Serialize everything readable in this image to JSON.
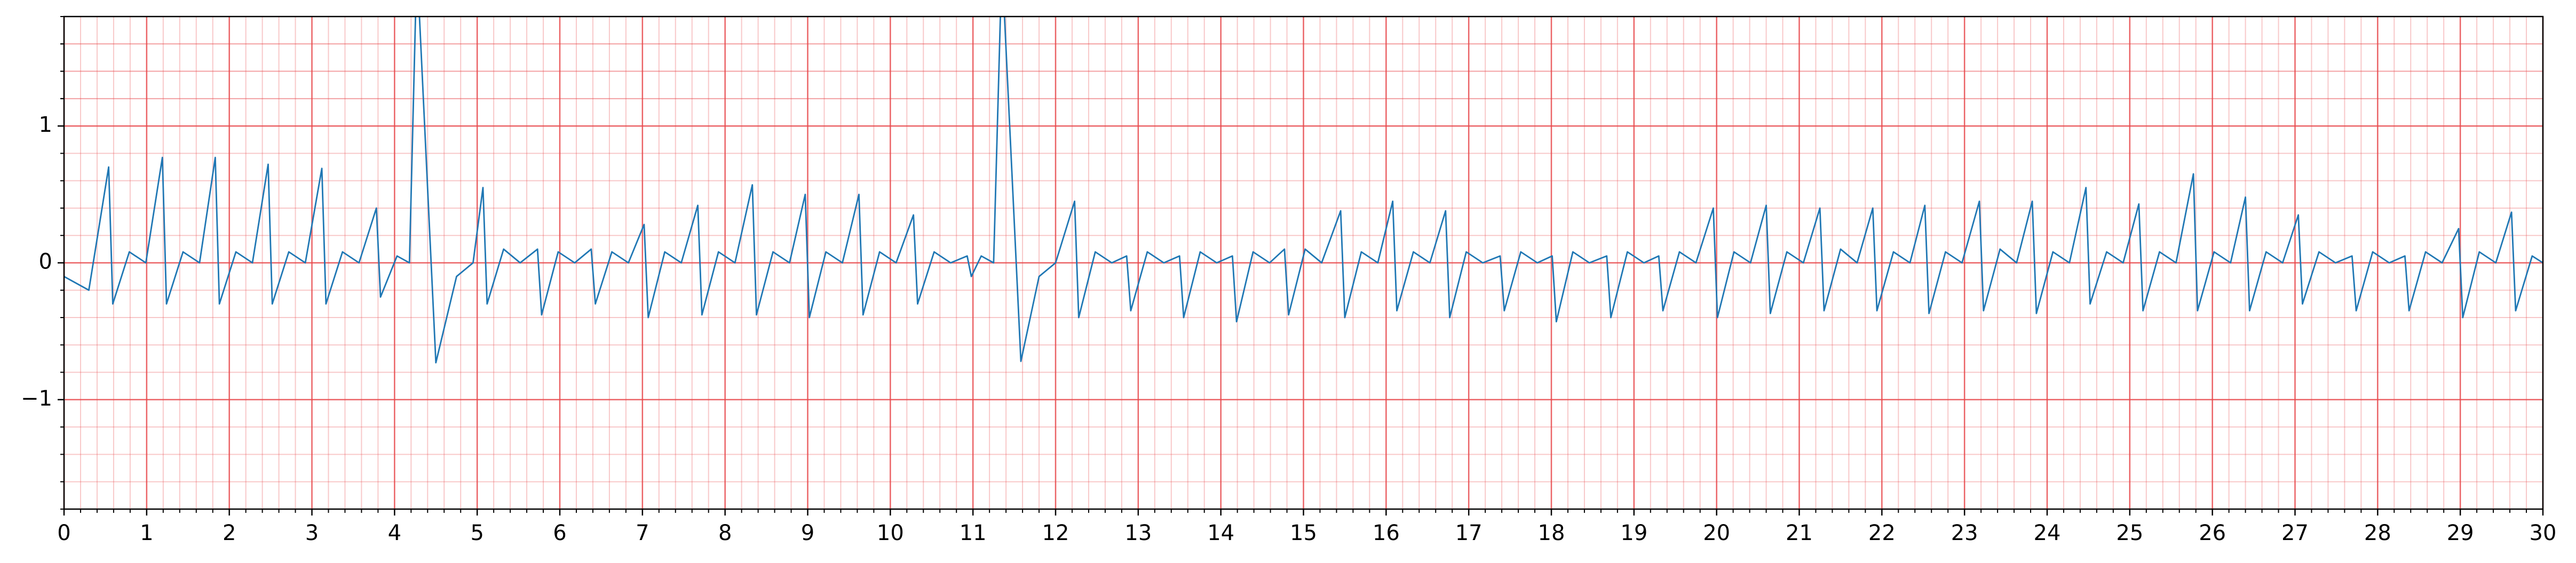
{
  "chart_data": {
    "type": "line",
    "color": "#1f77b4",
    "grid": true,
    "minor_grid": true,
    "grid_color": "#e8484b",
    "xlim": [
      0,
      30
    ],
    "ylim": [
      -1.8,
      1.8
    ],
    "xticks": [
      0,
      1,
      2,
      3,
      4,
      5,
      6,
      7,
      8,
      9,
      10,
      11,
      12,
      13,
      14,
      15,
      16,
      17,
      18,
      19,
      20,
      21,
      22,
      23,
      24,
      25,
      26,
      27,
      28,
      29,
      30
    ],
    "yticks": [
      {
        "value": -1,
        "label": "−1"
      },
      0,
      1
    ],
    "x": [
      0,
      0.3,
      0.54,
      0.59,
      0.79,
      0.99,
      1.19,
      1.24,
      1.44,
      1.64,
      1.83,
      1.88,
      2.08,
      2.28,
      2.47,
      2.52,
      2.72,
      2.92,
      3.12,
      3.17,
      3.37,
      3.57,
      3.78,
      3.83,
      4.03,
      4.18,
      4.27,
      4.5,
      4.75,
      4.95,
      5.07,
      5.12,
      5.32,
      5.52,
      5.73,
      5.78,
      5.98,
      6.18,
      6.38,
      6.43,
      6.63,
      6.83,
      7.02,
      7.07,
      7.27,
      7.47,
      7.67,
      7.72,
      7.92,
      8.12,
      8.33,
      8.38,
      8.58,
      8.78,
      8.97,
      9.02,
      9.22,
      9.42,
      9.62,
      9.67,
      9.87,
      10.07,
      10.28,
      10.33,
      10.53,
      10.73,
      10.93,
      10.98,
      11.1,
      11.25,
      11.35,
      11.58,
      11.8,
      12.0,
      12.23,
      12.28,
      12.48,
      12.68,
      12.86,
      12.91,
      13.11,
      13.31,
      13.5,
      13.55,
      13.75,
      13.95,
      14.14,
      14.19,
      14.39,
      14.59,
      14.77,
      14.82,
      15.02,
      15.22,
      15.45,
      15.5,
      15.7,
      15.9,
      16.08,
      16.13,
      16.33,
      16.53,
      16.72,
      16.77,
      16.97,
      17.17,
      17.38,
      17.43,
      17.63,
      17.83,
      18.01,
      18.06,
      18.26,
      18.46,
      18.67,
      18.72,
      18.92,
      19.12,
      19.3,
      19.35,
      19.55,
      19.75,
      19.96,
      20.01,
      20.21,
      20.41,
      20.6,
      20.65,
      20.85,
      21.05,
      21.25,
      21.3,
      21.5,
      21.7,
      21.89,
      21.94,
      22.14,
      22.34,
      22.52,
      22.57,
      22.77,
      22.97,
      23.18,
      23.23,
      23.43,
      23.63,
      23.82,
      23.87,
      24.07,
      24.27,
      24.47,
      24.52,
      24.72,
      24.92,
      25.11,
      25.16,
      25.36,
      25.56,
      25.77,
      25.82,
      26.02,
      26.22,
      26.4,
      26.45,
      26.65,
      26.85,
      27.04,
      27.09,
      27.29,
      27.49,
      27.69,
      27.74,
      27.94,
      28.14,
      28.33,
      28.38,
      28.58,
      28.78,
      28.98,
      29.03,
      29.23,
      29.43,
      29.62,
      29.67,
      29.87,
      30
    ],
    "values": [
      -0.1,
      -0.2,
      0.7,
      -0.3,
      0.08,
      0,
      0.77,
      -0.3,
      0.08,
      0,
      0.77,
      -0.3,
      0.08,
      0,
      0.72,
      -0.3,
      0.08,
      0,
      0.69,
      -0.3,
      0.08,
      0,
      0.4,
      -0.25,
      0.05,
      0,
      2.2,
      -0.73,
      -0.1,
      0,
      0.55,
      -0.3,
      0.1,
      0,
      0.1,
      -0.38,
      0.08,
      0,
      0.1,
      -0.3,
      0.08,
      0,
      0.28,
      -0.4,
      0.08,
      0,
      0.42,
      -0.38,
      0.08,
      0,
      0.57,
      -0.38,
      0.08,
      0,
      0.5,
      -0.4,
      0.08,
      0,
      0.5,
      -0.38,
      0.08,
      0,
      0.35,
      -0.3,
      0.08,
      0,
      0.05,
      -0.1,
      0.05,
      0,
      2.2,
      -0.72,
      -0.1,
      0,
      0.45,
      -0.4,
      0.08,
      0,
      0.05,
      -0.35,
      0.08,
      0,
      0.05,
      -0.4,
      0.08,
      0,
      0.05,
      -0.43,
      0.08,
      0,
      0.1,
      -0.38,
      0.1,
      0,
      0.38,
      -0.4,
      0.08,
      0,
      0.45,
      -0.35,
      0.08,
      0,
      0.38,
      -0.4,
      0.08,
      0,
      0.05,
      -0.35,
      0.08,
      0,
      0.05,
      -0.43,
      0.08,
      0,
      0.05,
      -0.4,
      0.08,
      0,
      0.05,
      -0.35,
      0.08,
      0,
      0.4,
      -0.4,
      0.08,
      0,
      0.42,
      -0.37,
      0.08,
      0,
      0.4,
      -0.35,
      0.1,
      0,
      0.4,
      -0.35,
      0.08,
      0,
      0.42,
      -0.37,
      0.08,
      0,
      0.45,
      -0.35,
      0.1,
      0,
      0.45,
      -0.37,
      0.08,
      0,
      0.55,
      -0.3,
      0.08,
      0,
      0.43,
      -0.35,
      0.08,
      0,
      0.65,
      -0.35,
      0.08,
      0,
      0.48,
      -0.35,
      0.08,
      0,
      0.35,
      -0.3,
      0.08,
      0,
      0.05,
      -0.35,
      0.08,
      0,
      0.05,
      -0.35,
      0.08,
      0,
      0.25,
      -0.4,
      0.08,
      0,
      0.37,
      -0.35,
      0.05,
      0
    ]
  }
}
